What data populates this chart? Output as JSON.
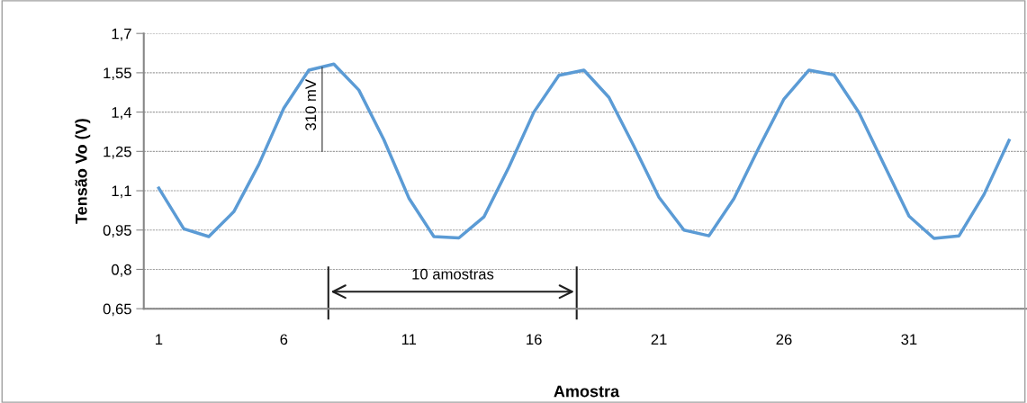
{
  "chart_data": {
    "type": "line",
    "xlabel": "Amostra",
    "ylabel": "Tensão Vo (V)",
    "categories": [
      "1",
      null,
      null,
      null,
      null,
      "6",
      null,
      null,
      null,
      null,
      "11",
      null,
      null,
      null,
      null,
      "16",
      null,
      null,
      null,
      null,
      "21",
      null,
      null,
      null,
      null,
      "26",
      null,
      null,
      null,
      null,
      "31",
      null,
      null,
      null,
      null
    ],
    "series": [
      {
        "color": "#5b9bd5",
        "values": [
          1.11,
          0.955,
          0.925,
          1.02,
          1.2,
          1.415,
          1.56,
          1.583,
          1.484,
          1.295,
          1.072,
          0.925,
          0.92,
          1.0,
          1.19,
          1.4,
          1.54,
          1.56,
          1.456,
          1.27,
          1.075,
          0.95,
          0.928,
          1.07,
          1.265,
          1.45,
          1.56,
          1.542,
          1.398,
          1.2,
          1.003,
          0.918,
          0.928,
          1.086,
          1.292
        ]
      }
    ],
    "ylim": [
      0.65,
      1.7
    ],
    "yticks": [
      {
        "value": 0.65,
        "label": "0,65"
      },
      {
        "value": 0.8,
        "label": "0,8"
      },
      {
        "value": 0.95,
        "label": "0,95"
      },
      {
        "value": 1.1,
        "label": "1,1"
      },
      {
        "value": 1.25,
        "label": "1,25"
      },
      {
        "value": 1.4,
        "label": "1,4"
      },
      {
        "value": 1.55,
        "label": "1,55"
      },
      {
        "value": 1.7,
        "label": "1,7"
      }
    ],
    "grid": "y",
    "marker": "none",
    "line_style": "solid",
    "annotations": [
      "310 mV",
      "10 amostras"
    ]
  }
}
